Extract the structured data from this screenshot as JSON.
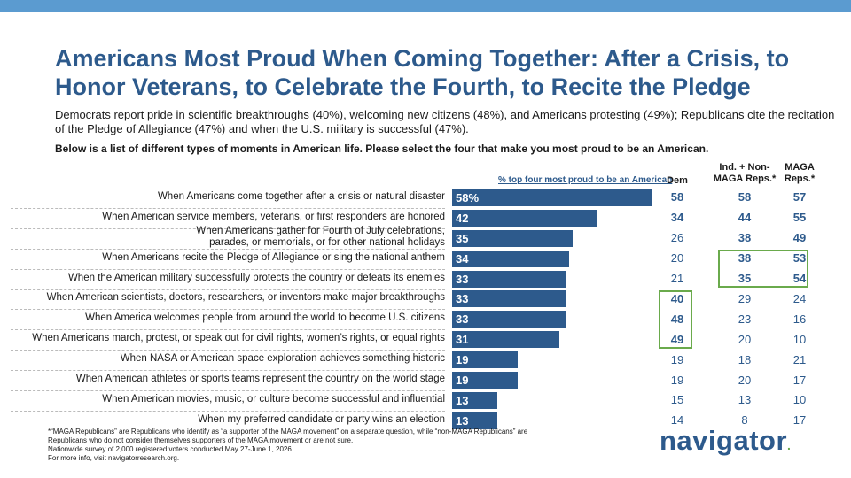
{
  "title": "Americans Most Proud When Coming Together: After a Crisis, to Honor Veterans, to Celebrate the Fourth, to Recite the Pledge",
  "subtitle": "Democrats report pride in scientific breakthroughs (40%), welcoming new citizens (48%), and Americans protesting (49%); Republicans cite the recitation of the Pledge of Allegiance (47%) and when the U.S. military is successful (47%).",
  "question": "Below is a list of different types of moments in American life. Please select the four that make you most proud to be an American.",
  "colors": {
    "bar": "#2d5a8c",
    "value_text": "#2d5a8c",
    "highlight": "#6aaa4c",
    "top_bar": "#5b9bd0"
  },
  "chart_data": {
    "type": "bar",
    "orientation": "horizontal",
    "bar_header": "% top four most proud to be an American",
    "xlim": [
      0,
      100
    ],
    "categories": [
      "When Americans come together after a crisis or natural disaster",
      "When American service members, veterans, or first responders are honored",
      "When Americans gather for Fourth of July celebrations,\nparades, or memorials, or for other national holidays",
      "When Americans recite the Pledge of Allegiance or sing the national anthem",
      "When the American military successfully protects the country or defeats its enemies",
      "When American scientists, doctors, researchers, or inventors make major breakthroughs",
      "When America welcomes people from around the world to become U.S. citizens",
      "When Americans march, protest, or speak out for civil rights, women’s rights, or equal rights",
      "When NASA or American space exploration achieves something historic",
      "When American athletes or sports teams represent the country on the world stage",
      "When American movies, music, or culture become successful and influential",
      "When my preferred candidate or party wins an election"
    ],
    "values": [
      58,
      42,
      35,
      34,
      33,
      33,
      33,
      31,
      19,
      19,
      13,
      13
    ],
    "value_labels": [
      "58%",
      "42",
      "35",
      "34",
      "33",
      "33",
      "33",
      "31",
      "19",
      "19",
      "13",
      "13"
    ],
    "columns": [
      {
        "name": "Dem",
        "values": [
          58,
          34,
          26,
          20,
          21,
          40,
          48,
          49,
          19,
          19,
          15,
          14
        ]
      },
      {
        "name": "Ind. + Non-MAGA Reps.*",
        "values": [
          58,
          44,
          38,
          38,
          35,
          29,
          23,
          20,
          18,
          20,
          13,
          8
        ]
      },
      {
        "name": "MAGA Reps.*",
        "values": [
          57,
          55,
          49,
          53,
          54,
          24,
          16,
          10,
          21,
          17,
          10,
          17
        ]
      }
    ],
    "bold": [
      [
        true,
        true,
        false,
        false,
        false,
        true,
        true,
        true,
        false,
        false,
        false,
        false
      ],
      [
        true,
        true,
        true,
        true,
        true,
        false,
        false,
        false,
        false,
        false,
        false,
        false
      ],
      [
        true,
        true,
        true,
        true,
        true,
        false,
        false,
        false,
        false,
        false,
        false,
        false
      ]
    ],
    "highlights": [
      {
        "column": 0,
        "rows": [
          5,
          6,
          7
        ]
      },
      {
        "column": 1,
        "rows": [
          3,
          4
        ]
      },
      {
        "column": 2,
        "rows": [
          3,
          4
        ]
      }
    ]
  },
  "footnote": [
    "*“MAGA Republicans” are Republicans who identify as “a supporter of the MAGA movement” on a separate question, while “non-MAGA Republicans” are",
    "Republicans who do not consider themselves supporters of the MAGA movement or are not sure.",
    "Nationwide survey of 2,000 registered voters conducted May 27-June 1, 2026.",
    "For more info, visit navigatorresearch.org."
  ],
  "logo": {
    "text": "navigator",
    "mark": "."
  }
}
